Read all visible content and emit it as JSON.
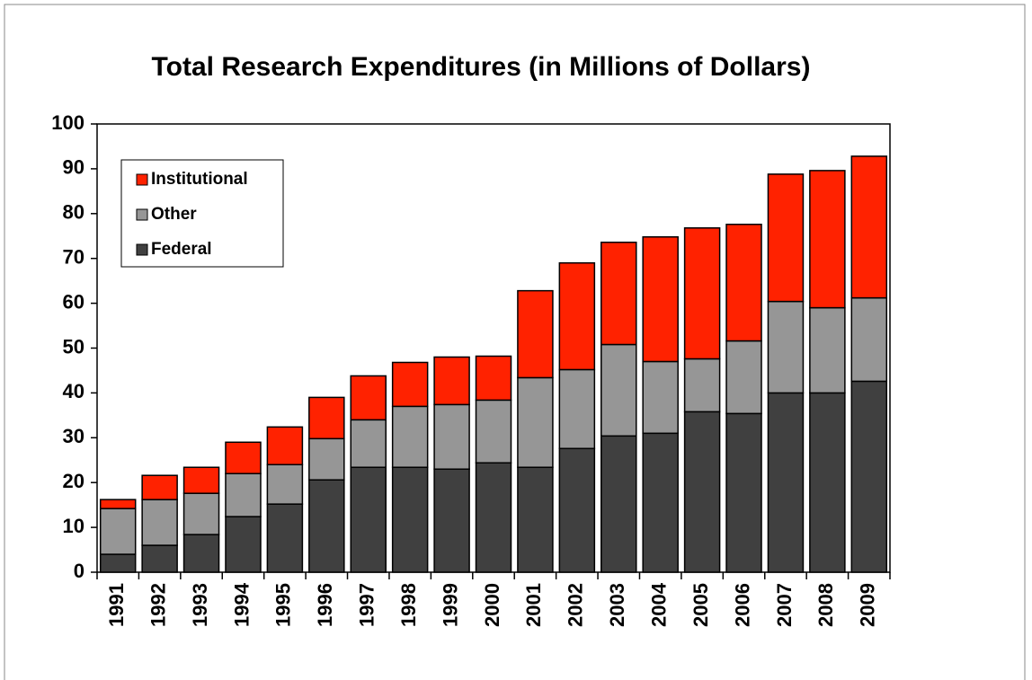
{
  "chart_data": {
    "type": "stacked-bar",
    "title": "Total Research Expenditures (in Millions of Dollars)",
    "categories": [
      "1991",
      "1992",
      "1993",
      "1994",
      "1995",
      "1996",
      "1997",
      "1998",
      "1999",
      "2000",
      "2001",
      "2002",
      "2003",
      "2004",
      "2005",
      "2006",
      "2007",
      "2008",
      "2009"
    ],
    "series": [
      {
        "name": "Federal",
        "color": "#404040",
        "values": [
          4,
          6,
          8.4,
          12.4,
          15.2,
          20.6,
          23.4,
          23.4,
          23,
          24.4,
          23.4,
          27.6,
          30.4,
          31,
          35.8,
          35.4,
          40,
          40,
          42.6
        ]
      },
      {
        "name": "Other",
        "color": "#969696",
        "values": [
          10.2,
          10.2,
          9.2,
          9.6,
          8.8,
          9.2,
          10.6,
          13.6,
          14.4,
          14,
          20,
          17.6,
          20.4,
          16,
          11.8,
          16.2,
          20.4,
          19,
          18.6
        ]
      },
      {
        "name": "Institutional",
        "color": "#ff2200",
        "values": [
          2,
          5.4,
          5.8,
          7,
          8.4,
          9.2,
          9.8,
          9.8,
          10.6,
          9.8,
          19.4,
          23.8,
          22.8,
          27.8,
          29.2,
          26,
          28.4,
          30.6,
          31.6
        ]
      }
    ],
    "ylim": [
      0,
      100
    ],
    "yticks": [
      0,
      10,
      20,
      30,
      40,
      50,
      60,
      70,
      80,
      90,
      100
    ],
    "grid": false,
    "legend": "upper-left"
  }
}
